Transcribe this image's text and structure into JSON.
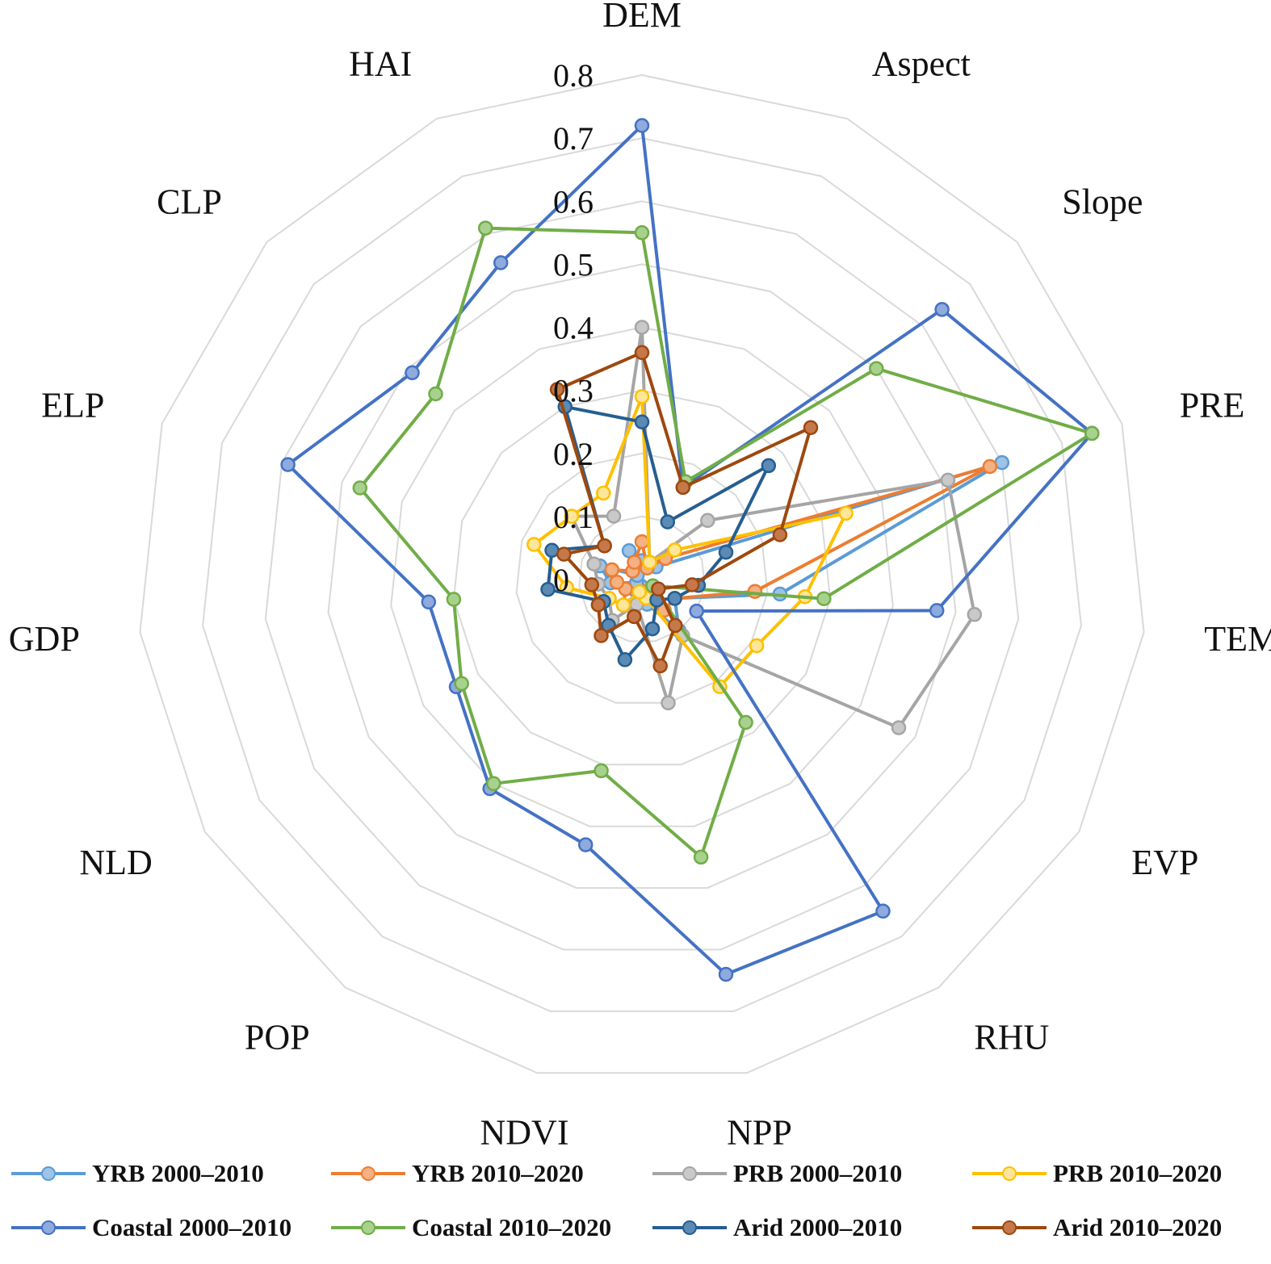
{
  "chart_data": {
    "type": "radar",
    "categories": [
      "DEM",
      "Aspect",
      "Slope",
      "PRE",
      "TEM",
      "EVP",
      "RHU",
      "NPP",
      "NDVI",
      "POP",
      "NLD",
      "GDP",
      "ELP",
      "CLP",
      "HAI"
    ],
    "rlim": [
      0,
      0.8
    ],
    "ticks": [
      0,
      0.1,
      0.2,
      0.3,
      0.4,
      0.5,
      0.6,
      0.7,
      0.8
    ],
    "tick_labels": [
      "0",
      "0.1",
      "0.2",
      "0.3",
      "0.4",
      "0.5",
      "0.6",
      "0.7",
      "0.8"
    ],
    "legend_position": "bottom",
    "series": [
      {
        "name": "YRB 2000–2010",
        "color": "#5b9bd5",
        "fill": "#9dc3e6",
        "values": [
          0.03,
          0.03,
          0.03,
          0.6,
          0.22,
          0.06,
          0.1,
          0.04,
          0.01,
          0.02,
          0.01,
          0.05,
          0.07,
          0.01,
          0.05
        ]
      },
      {
        "name": "YRB 2010–2020",
        "color": "#ed7d31",
        "fill": "#f4b183",
        "values": [
          0.06,
          0.02,
          0.05,
          0.58,
          0.18,
          0.06,
          0.06,
          0.02,
          0.04,
          0.05,
          0.03,
          0.04,
          0.05,
          0.02,
          0.03
        ]
      },
      {
        "name": "PRB 2000–2010",
        "color": "#a5a5a5",
        "fill": "#c9c9c9",
        "values": [
          0.4,
          0.03,
          0.14,
          0.51,
          0.53,
          0.47,
          0.11,
          0.2,
          0.04,
          0.08,
          0.06,
          0.07,
          0.08,
          0.15,
          0.11
        ]
      },
      {
        "name": "PRB 2010–2020",
        "color": "#ffc000",
        "fill": "#ffe699",
        "values": [
          0.29,
          0.03,
          0.07,
          0.34,
          0.26,
          0.21,
          0.21,
          0.03,
          0.02,
          0.05,
          0.06,
          0.12,
          0.18,
          0.15,
          0.15
        ]
      },
      {
        "name": "Coastal 2000–2010",
        "color": "#4472c4",
        "fill": "#8faadc",
        "values": [
          0.72,
          0.16,
          0.64,
          0.75,
          0.47,
          0.1,
          0.65,
          0.64,
          0.43,
          0.41,
          0.34,
          0.34,
          0.59,
          0.49,
          0.55
        ]
      },
      {
        "name": "Coastal 2010–2020",
        "color": "#70ad47",
        "fill": "#a9d18e",
        "values": [
          0.55,
          0.17,
          0.5,
          0.75,
          0.29,
          0.02,
          0.28,
          0.45,
          0.31,
          0.4,
          0.33,
          0.3,
          0.47,
          0.44,
          0.61
        ]
      },
      {
        "name": "Arid 2000–2010",
        "color": "#255e91",
        "fill": "#5b8ab5",
        "values": [
          0.25,
          0.1,
          0.27,
          0.14,
          0.09,
          0.06,
          0.04,
          0.08,
          0.13,
          0.09,
          0.07,
          0.15,
          0.15,
          0.08,
          0.3
        ]
      },
      {
        "name": "Arid 2010–2020",
        "color": "#9e480e",
        "fill": "#c5794a",
        "values": [
          0.36,
          0.16,
          0.36,
          0.23,
          0.08,
          0.03,
          0.09,
          0.14,
          0.06,
          0.11,
          0.08,
          0.08,
          0.13,
          0.08,
          0.33
        ]
      }
    ]
  }
}
